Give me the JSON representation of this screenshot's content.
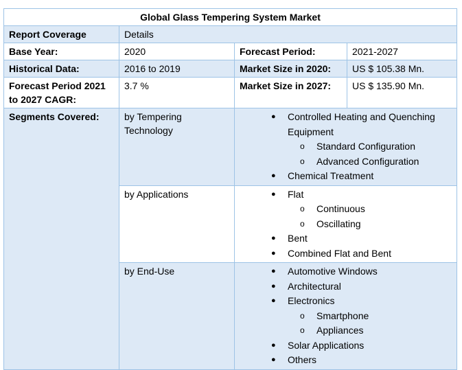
{
  "title": "Global Glass Tempering System Market",
  "header": {
    "left": "Report Coverage",
    "right": "Details"
  },
  "rows": [
    {
      "label": "Base Year:",
      "value": "2020",
      "label2": "Forecast Period:",
      "value2": "2021-2027"
    },
    {
      "label": "Historical Data:",
      "value": "2016 to 2019",
      "label2": "Market Size in 2020:",
      "value2": "US $ 105.38 Mn."
    },
    {
      "label": "Forecast Period 2021 to 2027 CAGR:",
      "value": "3.7 %",
      "label2": "Market Size in 2027:",
      "value2": "US $ 135.90 Mn."
    }
  ],
  "segments_label": "Segments Covered:",
  "segments": [
    {
      "name": "by Tempering Technology",
      "items": [
        {
          "text": "Controlled Heating and Quenching Equipment",
          "sub": [
            "Standard Configuration",
            "Advanced Configuration"
          ]
        },
        {
          "text": "Chemical Treatment",
          "sub": []
        }
      ]
    },
    {
      "name": "by Applications",
      "items": [
        {
          "text": "Flat",
          "sub": [
            "Continuous",
            "Oscillating"
          ]
        },
        {
          "text": "Bent",
          "sub": []
        },
        {
          "text": "Combined Flat and Bent",
          "sub": []
        }
      ]
    },
    {
      "name": "by End-Use",
      "items": [
        {
          "text": "Automotive Windows",
          "sub": []
        },
        {
          "text": "Architectural",
          "sub": []
        },
        {
          "text": "Electronics",
          "sub": [
            "Smartphone",
            "Appliances"
          ]
        },
        {
          "text": "Solar Applications",
          "sub": []
        },
        {
          "text": "Others",
          "sub": []
        }
      ]
    }
  ],
  "bullets": {
    "primary": "●",
    "secondary": "o"
  },
  "colors": {
    "border": "#9dc3e6",
    "shade": "#dde9f6"
  }
}
